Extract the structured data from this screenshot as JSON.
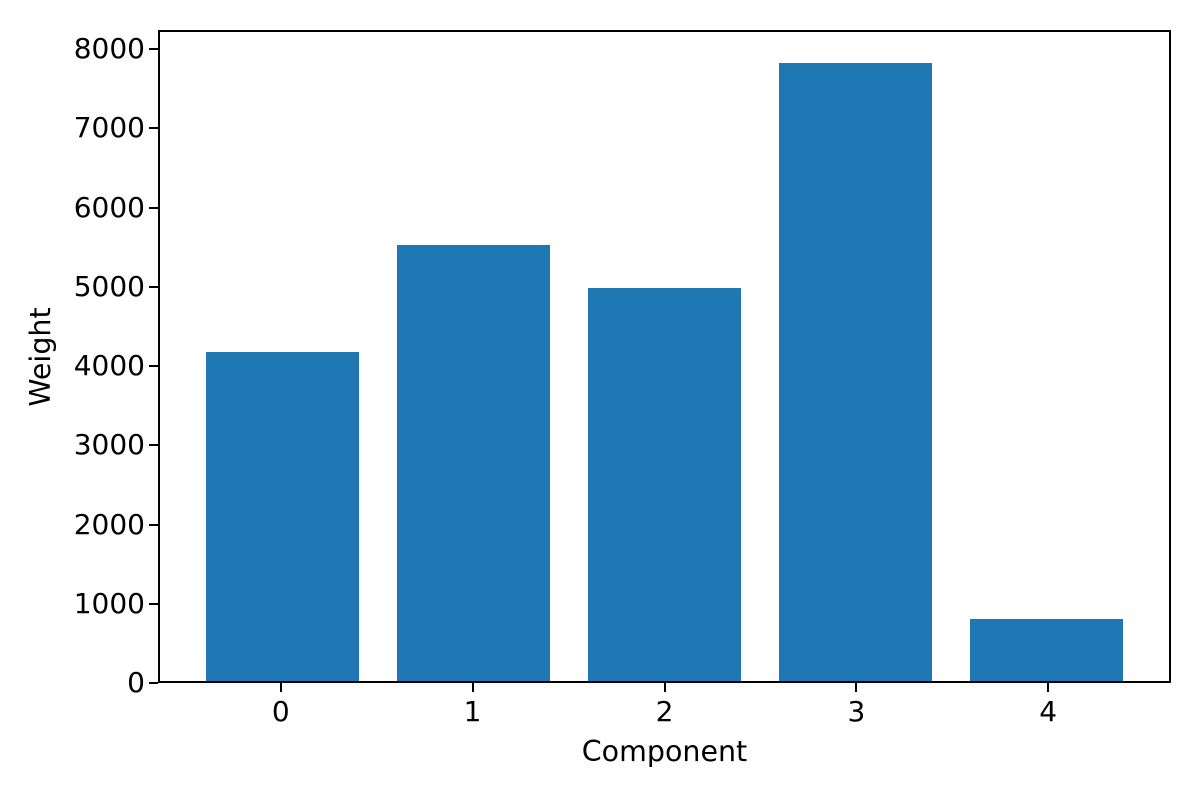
{
  "chart_data": {
    "type": "bar",
    "title": "",
    "xlabel": "Component",
    "ylabel": "Weight",
    "categories": [
      "0",
      "1",
      "2",
      "3",
      "4"
    ],
    "values": [
      4180,
      5530,
      4990,
      7850,
      790
    ],
    "yticks": [
      0,
      1000,
      2000,
      3000,
      4000,
      5000,
      6000,
      7000,
      8000
    ],
    "ytick_labels": [
      "0",
      "1000",
      "2000",
      "3000",
      "4000",
      "5000",
      "6000",
      "7000",
      "8000"
    ],
    "xlim": [
      -0.64,
      4.64
    ],
    "ylim": [
      0,
      8240
    ],
    "bar_width": 0.8,
    "bar_color": "#1f77b4",
    "axis_color": "#000000",
    "text_color": "#000000",
    "background_color": "#ffffff",
    "grid": false,
    "legend": null
  }
}
